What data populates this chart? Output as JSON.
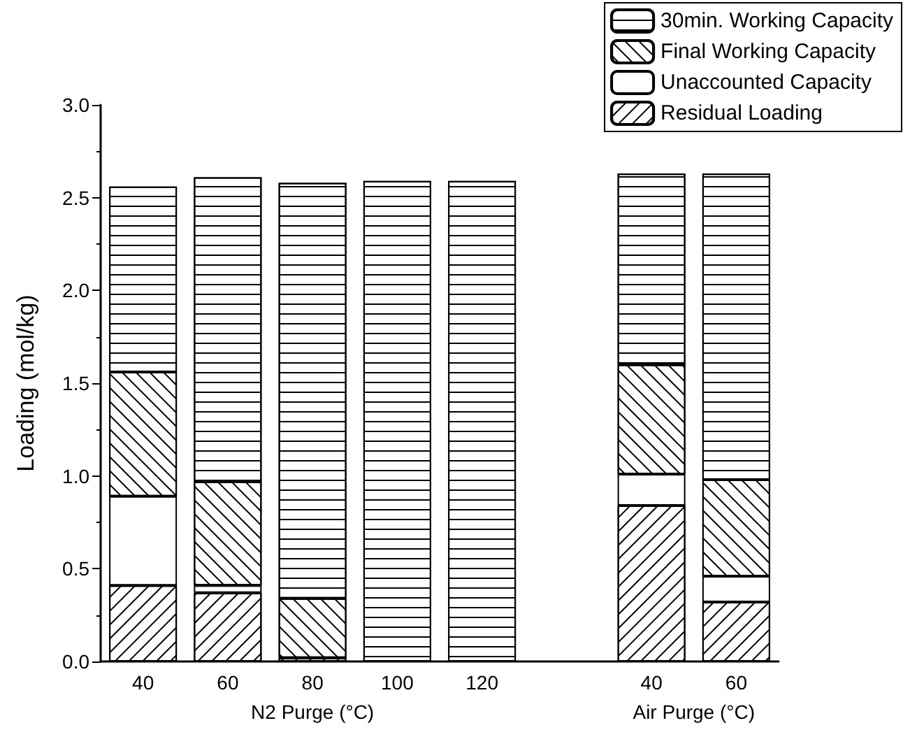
{
  "chart_data": {
    "type": "bar",
    "stacked": true,
    "ylabel": "Loading (mol/kg)",
    "xlabel": "N2 Purge (°C)",
    "annotations": [
      "Air Purge (°C)"
    ],
    "categories": [
      "40",
      "60",
      "80",
      "100",
      "120",
      null,
      "40",
      "60"
    ],
    "series": [
      {
        "name": "Residual Loading",
        "color": "#ffffff",
        "values": [
          0.41,
          0.37,
          0.02,
          null,
          null,
          null,
          0.84,
          0.32
        ]
      },
      {
        "name": "Unaccounted Capacity",
        "color": "#ffffff",
        "values": [
          0.48,
          0.04,
          null,
          null,
          0,
          null,
          0.17,
          0.14
        ]
      },
      {
        "name": "Final Working Capacity",
        "color": "#ffffff",
        "values": [
          0.67,
          0.56,
          0.32,
          0,
          0,
          null,
          0.59,
          0.52
        ]
      },
      {
        "name": "30min. Working Capacity",
        "color": "#ffffff",
        "values": [
          1.0,
          1.64,
          2.24,
          2.59,
          2.59,
          null,
          1.03,
          1.65
        ]
      }
    ],
    "ylim": [
      0,
      3
    ],
    "yticks": [
      {
        "value": 0,
        "label": "0.0"
      },
      {
        "value": 0.5,
        "label": "0.5"
      },
      {
        "value": 1,
        "label": "1.0"
      },
      {
        "value": 1.5,
        "label": "1.5"
      },
      {
        "value": 2,
        "label": "2.0"
      },
      {
        "value": 2.5,
        "label": "2.5"
      },
      {
        "value": 3,
        "label": "3.0"
      }
    ],
    "grid": false,
    "legend": "top right"
  }
}
